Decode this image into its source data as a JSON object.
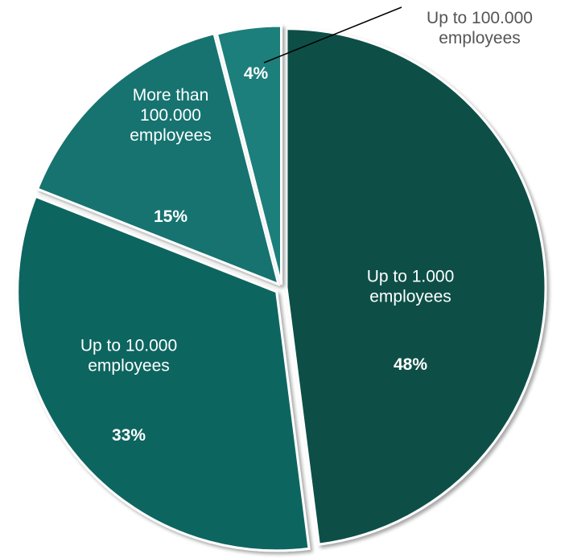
{
  "chart_data": {
    "type": "pie",
    "title": "",
    "slices": [
      {
        "label": [
          "Up to 1.000",
          "employees"
        ],
        "value": 48,
        "display": "48%",
        "color": "#0a4f47"
      },
      {
        "label": [
          "Up to 10.000",
          "employees"
        ],
        "value": 33,
        "display": "33%",
        "color": "#0f6560"
      },
      {
        "label": [
          "More than",
          "100.000",
          "employees"
        ],
        "value": 15,
        "display": "15%",
        "color": "#137370"
      },
      {
        "label": [
          "Up to 100.000",
          "employees"
        ],
        "value": 4,
        "display": "4%",
        "color": "#1a7f7c"
      }
    ]
  }
}
